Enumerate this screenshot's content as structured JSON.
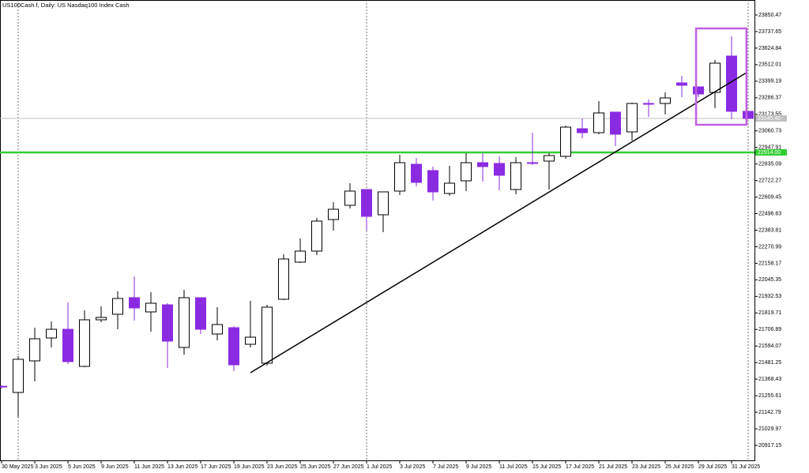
{
  "chart_data": {
    "type": "candlestick",
    "title": "US100Cash.f, Daily:  US Nasdaq100 Index Cash",
    "categories": [
      "30 May 2025",
      null,
      "3 Jun 2025",
      null,
      "5 Jun 2025",
      null,
      "9 Jun 2025",
      null,
      "11 Jun 2025",
      null,
      "13 Jun 2025",
      null,
      "17 Jun 2025",
      null,
      "19 Jun 2025",
      null,
      "23 Jun 2025",
      null,
      "25 Jun 2025",
      null,
      "27 Jun 2025",
      null,
      "1 Jul 2025",
      null,
      "3 Jul 2025",
      null,
      "7 Jul 2025",
      null,
      "9 Jul 2025",
      null,
      "11 Jul 2025",
      null,
      "15 Jul 2025",
      null,
      "17 Jul 2025",
      null,
      "21 Jul 2025",
      null,
      "23 Jul 2025",
      null,
      "25 Jul 2025",
      null,
      "29 Jul 2025",
      null,
      "31 Jul 2025",
      null
    ],
    "open": [
      21320.0,
      21277.8,
      21493.1,
      21649.2,
      21708.4,
      21455.5,
      21773.0,
      21810.7,
      21923.7,
      21826.8,
      21875.2,
      21584.6,
      21923.7,
      21676.1,
      21719.2,
      21606.1,
      21477.0,
      21912.9,
      22165.9,
      22241.2,
      22456.5,
      22553.4,
      22661.0,
      22488.8,
      22650.3,
      22833.2,
      22790.2,
      22634.1,
      22720.2,
      22844.0,
      22838.6,
      22661.0,
      22844.0,
      22854.8,
      22887.1,
      23075.4,
      23048.5,
      23188.5,
      23053.9,
      23247.7,
      23247.7,
      23387.6,
      23360.7,
      23323.0,
      23570.6,
      23193.8
    ],
    "high": [
      21326.3,
      21525.4,
      21719.2,
      21762.2,
      21891.4,
      21837.6,
      21864.5,
      21966.7,
      22069.0,
      21961.4,
      21886.0,
      21977.5,
      21923.7,
      21859.1,
      21729.9,
      21902.2,
      21875.2,
      22219.7,
      22327.3,
      22467.3,
      22574.9,
      22704.1,
      22661.0,
      22644.9,
      22897.8,
      22876.3,
      22817.1,
      22822.5,
      22908.6,
      22908.6,
      22887.1,
      22881.7,
      23048.5,
      22908.6,
      23097.0,
      23145.4,
      23263.8,
      23188.5,
      23253.0,
      23274.6,
      23323.0,
      23436.0,
      23360.7,
      23543.7,
      23705.1,
      23193.8
    ],
    "low": [
      21304.8,
      21111.0,
      21353.2,
      21584.6,
      21471.6,
      21450.1,
      21756.8,
      21708.4,
      21767.6,
      21692.3,
      21444.7,
      21536.2,
      21676.1,
      21633.1,
      21423.2,
      21584.6,
      21460.8,
      21907.5,
      22160.5,
      22214.3,
      22381.2,
      22531.9,
      22381.2,
      22370.4,
      22623.3,
      22682.5,
      22585.7,
      22618.0,
      22650.3,
      22714.8,
      22655.6,
      22628.7,
      22827.9,
      22661.0,
      22870.9,
      23010.8,
      23037.8,
      22957.0,
      22994.7,
      23156.2,
      23172.3,
      23290.7,
      23290.7,
      23215.4,
      23140.0,
      23140.0
    ],
    "close": [
      21315.5,
      21503.9,
      21643.8,
      21708.4,
      21487.7,
      21773.0,
      21789.1,
      21918.3,
      21853.7,
      21886.0,
      21627.7,
      21923.7,
      21708.4,
      21740.7,
      21466.2,
      21654.6,
      21859.1,
      22187.4,
      22241.2,
      22445.7,
      22526.5,
      22650.3,
      22478.0,
      22644.9,
      22844.0,
      22709.5,
      22644.9,
      22704.1,
      22844.0,
      22817.1,
      22757.9,
      22844.0,
      22838.6,
      22892.4,
      23086.2,
      23048.5,
      23183.1,
      23037.8,
      23247.7,
      23242.3,
      23285.3,
      23371.4,
      23312.2,
      23522.1,
      23193.8,
      23145.4
    ],
    "up_color": "#ffffff",
    "down_color": "#8a2be2",
    "ylim": [
      20814.9,
      23952.7
    ],
    "yticks": [
      23850.47,
      23737.65,
      23624.84,
      23512.01,
      23399.19,
      23286.37,
      23173.55,
      23060.73,
      22947.91,
      22835.09,
      22722.27,
      22609.45,
      22496.63,
      22383.81,
      22270.99,
      22158.17,
      22045.35,
      21932.53,
      21819.71,
      21706.89,
      21594.07,
      21481.25,
      21368.43,
      21255.61,
      21142.79,
      21029.97,
      20917.15
    ],
    "separators": [
      1,
      22,
      45
    ],
    "price_line": {
      "value": 23145.4,
      "label": "23145.40",
      "color": "#c0c0c0"
    },
    "level_line": {
      "value": 22914.0,
      "label": "22914.00",
      "color": "#32cd32"
    },
    "trendline": {
      "x": [
        15,
        44.9
      ],
      "y": [
        21412.5,
        23457.6
      ],
      "color": "#000000"
    },
    "highlight": {
      "x": [
        41.86,
        44.9
      ],
      "y": [
        23102.4,
        23759.0
      ],
      "color": "#c060e0"
    }
  }
}
